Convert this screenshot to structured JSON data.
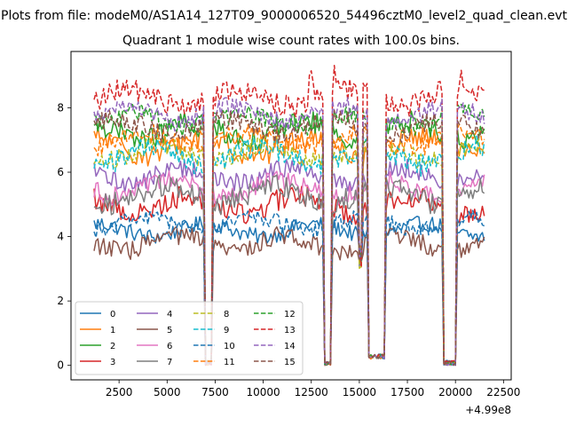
{
  "figure": {
    "suptitle": "Plots from file: modeM0/AS1A14_127T09_9000006520_54496cztM0_level2_quad_clean.evt"
  },
  "chart_data": {
    "type": "line",
    "title": "Quadrant 1 module wise count rates with 100.0s bins.",
    "xlabel": "",
    "ylabel": "",
    "x_offset_label": "+4.99e8",
    "xlim": [
      0,
      22900
    ],
    "ylim": [
      -0.45,
      9.75
    ],
    "x_ticks": [
      2500,
      5000,
      7500,
      10000,
      12500,
      15000,
      17500,
      20000,
      22500
    ],
    "x_tick_labels": [
      "2500",
      "5000",
      "7500",
      "10000",
      "12500",
      "15000",
      "17500",
      "20000",
      "22500"
    ],
    "y_ticks": [
      0,
      2,
      4,
      6,
      8
    ],
    "y_tick_labels": [
      "0",
      "2",
      "4",
      "6",
      "8"
    ],
    "grid": false,
    "legend": {
      "position": "lower-left",
      "columns": 4
    },
    "bin_width": 100,
    "x_start": 1200,
    "x_end": 21500,
    "segments": [
      {
        "from": 1200,
        "to": 6900
      },
      {
        "from": 7400,
        "to": 13100
      },
      {
        "from": 13600,
        "to": 14900
      },
      {
        "from": 15200,
        "to": 15400
      },
      {
        "from": 16400,
        "to": 19300
      },
      {
        "from": 20100,
        "to": 21500
      }
    ],
    "dips": [
      {
        "from": 6900,
        "to": 7400,
        "floor": 0.0
      },
      {
        "from": 13100,
        "to": 13600,
        "floor": 0.0
      },
      {
        "from": 14900,
        "to": 15200,
        "floor": 3.0
      },
      {
        "from": 15400,
        "to": 16400,
        "floor": 0.2
      },
      {
        "from": 19300,
        "to": 20100,
        "floor": 0.0
      }
    ],
    "series": [
      {
        "name": "0",
        "level": 4.2,
        "noise": 0.25,
        "color": "#1f77b4",
        "dash": "solid"
      },
      {
        "name": "1",
        "level": 6.8,
        "noise": 0.35,
        "color": "#ff7f0e",
        "dash": "solid"
      },
      {
        "name": "2",
        "level": 7.3,
        "noise": 0.35,
        "color": "#2ca02c",
        "dash": "solid"
      },
      {
        "name": "3",
        "level": 5.0,
        "noise": 0.35,
        "color": "#d62728",
        "dash": "solid"
      },
      {
        "name": "4",
        "level": 5.9,
        "noise": 0.3,
        "color": "#9467bd",
        "dash": "solid"
      },
      {
        "name": "5",
        "level": 3.8,
        "noise": 0.3,
        "color": "#8c564b",
        "dash": "solid"
      },
      {
        "name": "6",
        "level": 5.5,
        "noise": 0.3,
        "color": "#e377c2",
        "dash": "solid"
      },
      {
        "name": "7",
        "level": 5.3,
        "noise": 0.35,
        "color": "#7f7f7f",
        "dash": "solid"
      },
      {
        "name": "8",
        "level": 6.6,
        "noise": 0.3,
        "color": "#bcbd22",
        "dash": "dashed"
      },
      {
        "name": "9",
        "level": 6.5,
        "noise": 0.35,
        "color": "#17becf",
        "dash": "dashed"
      },
      {
        "name": "10",
        "level": 4.4,
        "noise": 0.25,
        "color": "#1f77b4",
        "dash": "dashed"
      },
      {
        "name": "11",
        "level": 7.0,
        "noise": 0.3,
        "color": "#ff7f0e",
        "dash": "dashed"
      },
      {
        "name": "12",
        "level": 7.6,
        "noise": 0.3,
        "color": "#2ca02c",
        "dash": "dashed"
      },
      {
        "name": "13",
        "level": 8.3,
        "noise": 0.35,
        "color": "#d62728",
        "dash": "dashed"
      },
      {
        "name": "14",
        "level": 7.8,
        "noise": 0.3,
        "color": "#9467bd",
        "dash": "dashed"
      },
      {
        "name": "15",
        "level": 7.4,
        "noise": 0.3,
        "color": "#8c564b",
        "dash": "dashed"
      }
    ]
  }
}
